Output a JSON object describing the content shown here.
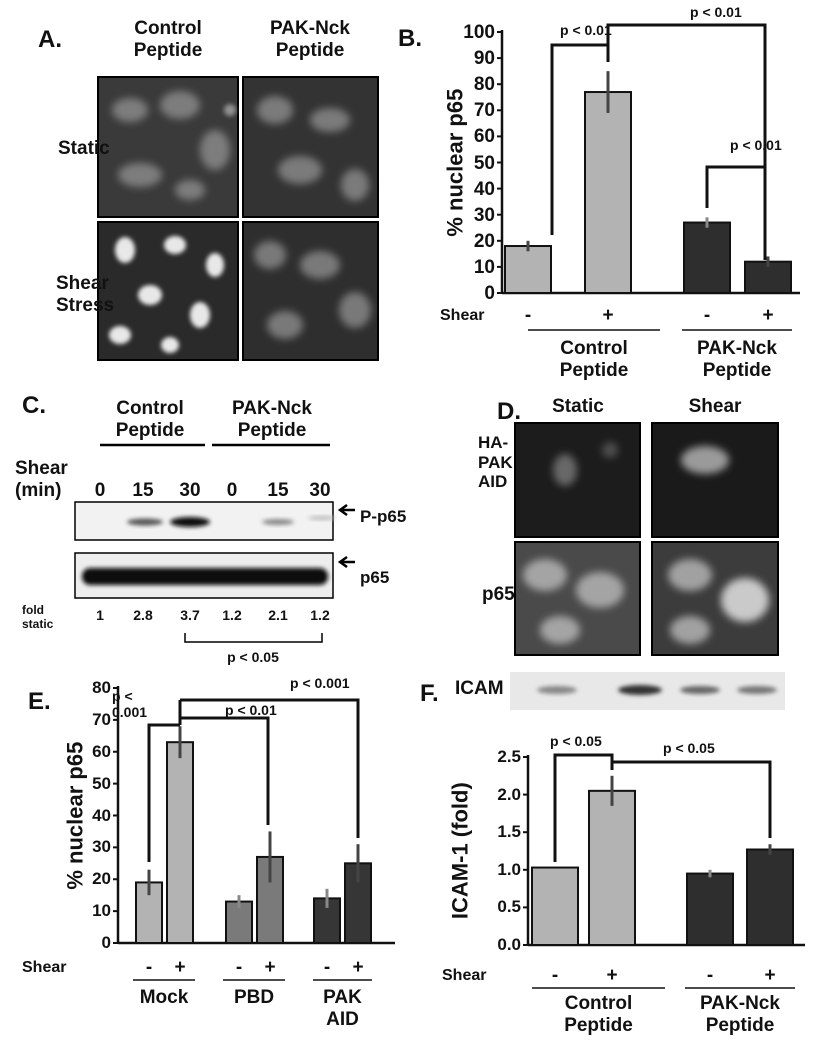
{
  "panel_a": {
    "label": "A.",
    "columns": [
      "Control Peptide",
      "PAK-Nck Peptide"
    ],
    "rows": [
      "Static",
      "Shear Stress"
    ]
  },
  "panel_c": {
    "label": "C.",
    "groups": [
      "Control Peptide",
      "PAK-Nck Peptide"
    ],
    "shear_label": "Shear (min)",
    "times": [
      0,
      15,
      30,
      0,
      15,
      30
    ],
    "bands": [
      "P-p65",
      "p65"
    ],
    "fold_label": "fold static",
    "fold_values": [
      1,
      2.8,
      3.7,
      1.2,
      2.1,
      1.2
    ],
    "p_value": "p < 0.05"
  },
  "panel_d": {
    "label": "D.",
    "columns": [
      "Static",
      "Shear"
    ],
    "rows": [
      "HA-PAK AID",
      "p65"
    ]
  },
  "chart_data": [
    {
      "type": "bar",
      "panel_label": "B.",
      "ylabel": "% nuclear p65",
      "xlabel": "Shear",
      "categories": [
        "-",
        "+",
        "-",
        "+"
      ],
      "group_labels": [
        "Control Peptide",
        "PAK-Nck Peptide"
      ],
      "values": [
        18,
        77,
        27,
        12
      ],
      "errors": [
        2,
        8,
        2,
        2
      ],
      "colors": [
        "#b3b3b3",
        "#b3b3b3",
        "#2e2e2e",
        "#2e2e2e"
      ],
      "ylim": [
        0,
        100
      ],
      "yticks": [
        0,
        10,
        20,
        30,
        40,
        50,
        60,
        70,
        80,
        90,
        100
      ],
      "annotations": [
        "p < 0.01",
        "p < 0.01",
        "p < 0.01"
      ]
    },
    {
      "type": "bar",
      "panel_label": "E.",
      "ylabel": "% nuclear p65",
      "xlabel": "Shear",
      "categories": [
        "-",
        "+",
        "-",
        "+",
        "-",
        "+"
      ],
      "group_labels": [
        "Mock",
        "PBD",
        "PAK AID"
      ],
      "values": [
        19,
        63,
        13,
        27,
        14,
        25
      ],
      "errors": [
        4,
        5,
        2,
        8,
        3,
        6
      ],
      "colors": [
        "#b3b3b3",
        "#b3b3b3",
        "#7a7a7a",
        "#7a7a7a",
        "#363636",
        "#363636"
      ],
      "ylim": [
        0,
        80
      ],
      "yticks": [
        0,
        10,
        20,
        30,
        40,
        50,
        60,
        70,
        80
      ],
      "annotations": [
        "p < 0.001",
        "p < 0.01",
        "p < 0.001"
      ]
    },
    {
      "type": "bar",
      "panel_label": "F.",
      "ylabel": "ICAM-1 (fold)",
      "xlabel": "Shear",
      "blot_label": "ICAM",
      "categories": [
        "-",
        "+",
        "-",
        "+"
      ],
      "group_labels": [
        "Control Peptide",
        "PAK-Nck Peptide"
      ],
      "values": [
        1.03,
        2.05,
        0.95,
        1.27
      ],
      "errors": [
        null,
        0.2,
        0.05,
        0.07
      ],
      "colors": [
        "#b3b3b3",
        "#b3b3b3",
        "#2e2e2e",
        "#2e2e2e"
      ],
      "ylim": [
        0,
        2.5
      ],
      "yticks": [
        {
          "value": 0,
          "label": "0.0"
        },
        0.5,
        {
          "value": 1,
          "label": "1.0"
        },
        1.5,
        {
          "value": 2,
          "label": "2.0"
        },
        2.5
      ],
      "annotations": [
        "p < 0.05",
        "p < 0.05"
      ]
    }
  ]
}
